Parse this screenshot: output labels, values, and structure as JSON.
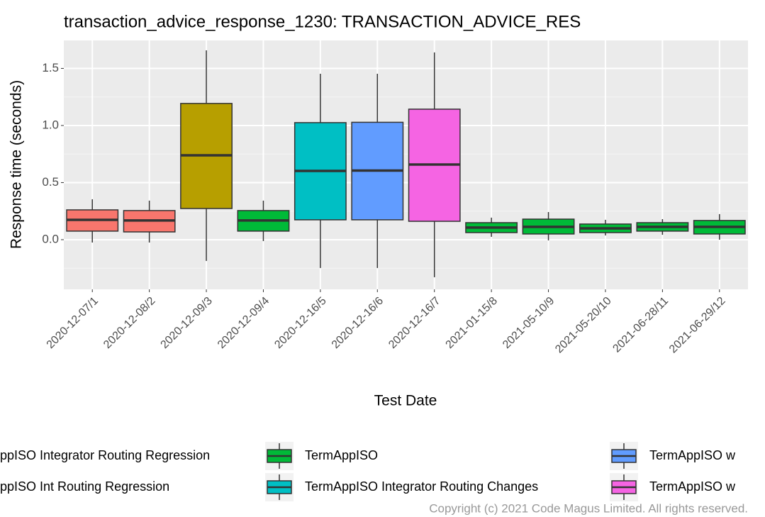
{
  "chart_data": {
    "type": "boxplot",
    "title": "transaction_advice_response_1230: TRANSACTION_ADVICE_RES",
    "x_label": "Test Date",
    "y_label": "Response time (seconds)",
    "caption": "Copyright (c) 2021 Code Magus Limited. All rights reserved.",
    "categories": [
      "2020-12-07/1",
      "2020-12-08/2",
      "2020-12-09/3",
      "2020-12-09/4",
      "2020-12-16/5",
      "2020-12-16/6",
      "2020-12-16/7",
      "2021-01-15/8",
      "2021-05-10/9",
      "2021-05-20/10",
      "2021-06-28/11",
      "2021-06-29/12"
    ],
    "boxes": [
      {
        "low": -0.025,
        "q1": 0.075,
        "median": 0.174,
        "q3": 0.261,
        "high": 0.354,
        "color": "#F8766D"
      },
      {
        "low": -0.025,
        "q1": 0.068,
        "median": 0.168,
        "q3": 0.255,
        "high": 0.342,
        "color": "#F8766D"
      },
      {
        "low": -0.186,
        "q1": 0.273,
        "median": 0.739,
        "q3": 1.193,
        "high": 1.658,
        "color": "#B79F00"
      },
      {
        "low": -0.012,
        "q1": 0.075,
        "median": 0.168,
        "q3": 0.255,
        "high": 0.342,
        "color": "#00BA38"
      },
      {
        "low": -0.248,
        "q1": 0.174,
        "median": 0.602,
        "q3": 1.025,
        "high": 1.453,
        "color": "#00BFC4"
      },
      {
        "low": -0.248,
        "q1": 0.174,
        "median": 0.605,
        "q3": 1.028,
        "high": 1.453,
        "color": "#619CFF"
      },
      {
        "low": -0.329,
        "q1": 0.161,
        "median": 0.658,
        "q3": 1.143,
        "high": 1.64,
        "color": "#F564E3"
      },
      {
        "low": 0.025,
        "q1": 0.062,
        "median": 0.106,
        "q3": 0.149,
        "high": 0.193,
        "color": "#00BA38"
      },
      {
        "low": -0.006,
        "q1": 0.05,
        "median": 0.112,
        "q3": 0.18,
        "high": 0.242,
        "color": "#00BA38"
      },
      {
        "low": 0.037,
        "q1": 0.062,
        "median": 0.099,
        "q3": 0.137,
        "high": 0.174,
        "color": "#00BA38"
      },
      {
        "low": 0.043,
        "q1": 0.075,
        "median": 0.112,
        "q3": 0.149,
        "high": 0.18,
        "color": "#00BA38"
      },
      {
        "low": 0.0,
        "q1": 0.05,
        "median": 0.112,
        "q3": 0.168,
        "high": 0.224,
        "color": "#00BA38"
      }
    ],
    "ylim": [
      -0.435,
      1.745
    ],
    "yticks": [
      {
        "value": 0,
        "label": "0.0"
      },
      0.5,
      {
        "value": 1,
        "label": "1.0"
      },
      {
        "value": 1.5,
        "label": "1.5"
      }
    ],
    "grid": true,
    "legend": [
      {
        "name": "ppISO Integrator Routing Regression",
        "color": "#F8766D"
      },
      {
        "name": "ppISO Int Routing Regression",
        "color": "#B79F00"
      },
      {
        "name": "TermAppISO",
        "color": "#00BA38"
      },
      {
        "name": "TermAppISO Integrator Routing Changes",
        "color": "#00BFC4"
      },
      {
        "name": "TermAppISO w",
        "color": "#619CFF"
      },
      {
        "name": "TermAppISO w",
        "color": "#F564E3"
      }
    ]
  }
}
